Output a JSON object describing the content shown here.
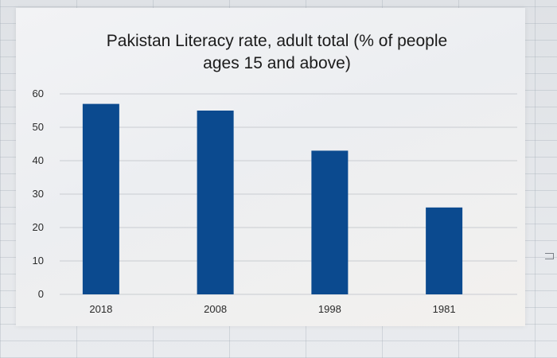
{
  "chart_data": {
    "type": "bar",
    "title_lines": [
      "Pakistan Literacy rate, adult total (% of people",
      "ages 15 and above)"
    ],
    "categories": [
      "2018",
      "2008",
      "1998",
      "1981"
    ],
    "values": [
      57,
      55,
      43,
      26
    ],
    "ylim": [
      0,
      60
    ],
    "yticks": [
      0,
      10,
      20,
      30,
      40,
      50,
      60
    ],
    "grid": true,
    "legend": "none",
    "bar_color": "#0b4a8f"
  }
}
